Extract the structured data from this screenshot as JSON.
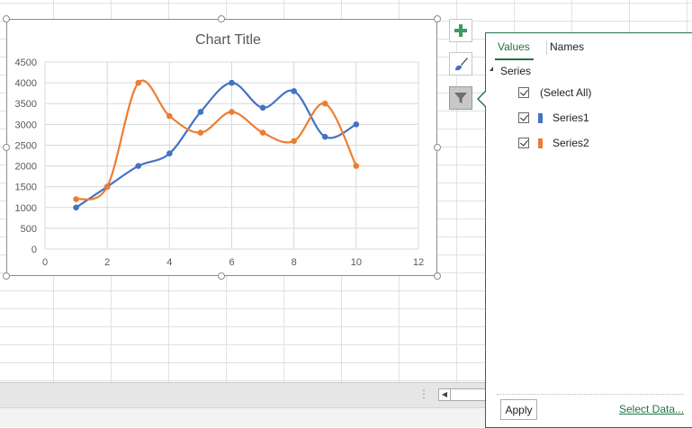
{
  "chart_data": {
    "type": "scatter",
    "title": "Chart Title",
    "xlim": [
      0,
      12
    ],
    "ylim": [
      0,
      4500
    ],
    "xticks": [
      0,
      2,
      4,
      6,
      8,
      10,
      12
    ],
    "yticks": [
      0,
      500,
      1000,
      1500,
      2000,
      2500,
      3000,
      3500,
      4000,
      4500
    ],
    "grid": true,
    "smooth_lines": true,
    "series": [
      {
        "name": "Series1",
        "color": "#4472C4",
        "x": [
          1,
          2,
          3,
          4,
          5,
          6,
          7,
          8,
          9,
          10
        ],
        "y": [
          1000,
          1500,
          2000,
          2300,
          3300,
          4000,
          3400,
          3800,
          2700,
          3000
        ]
      },
      {
        "name": "Series2",
        "color": "#ED7D31",
        "x": [
          1,
          2,
          3,
          4,
          5,
          6,
          7,
          8,
          9,
          10
        ],
        "y": [
          1200,
          1500,
          4000,
          3200,
          2800,
          3300,
          2800,
          2600,
          3500,
          2000
        ]
      }
    ]
  },
  "side_buttons": {
    "elements_icon": "plus-icon",
    "styles_icon": "brush-icon",
    "filter_icon": "funnel-icon"
  },
  "filter_pane": {
    "tabs": [
      "Values",
      "Names"
    ],
    "group_label": "Series",
    "items": [
      {
        "label": "(Select All)",
        "checked": true
      },
      {
        "label": "Series1",
        "checked": true,
        "color": "#4472C4"
      },
      {
        "label": "Series2",
        "checked": true,
        "color": "#ED7D31"
      }
    ],
    "apply_label": "Apply",
    "select_data_label": "Select Data..."
  }
}
